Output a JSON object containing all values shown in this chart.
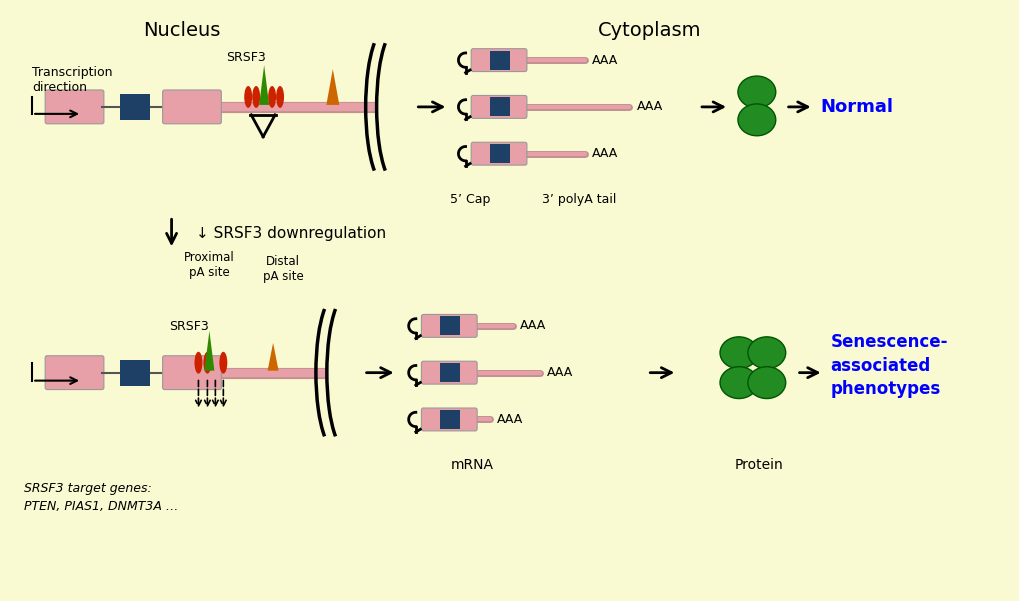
{
  "bg_color": "#FAFAD2",
  "pink": "#E8A0A8",
  "dark_blue": "#1E3F66",
  "green_col": "#2E8B00",
  "orange_col": "#CC6600",
  "red_col": "#CC2200",
  "dark_green": "#228B22",
  "title_nucleus": "Nucleus",
  "title_cytoplasm": "Cytoplasm",
  "label_transcription": "Transcription\ndirection",
  "label_srsf3": "SRSF3",
  "label_downreg": "↓ SRSF3 downregulation",
  "label_proximal": "Proximal\npA site",
  "label_distal": "Distal\npA site",
  "label_5cap": "5’ Cap",
  "label_3polya": "3’ polyA tail",
  "label_mrna": "mRNA",
  "label_protein": "Protein",
  "label_normal": "Normal",
  "label_senescence": "Senescence-\nassociated\nphenotypes",
  "label_target_genes": "SRSF3 target genes:\nPTEN, PIAS1, DNMT3A …",
  "text_aaa": "AAA"
}
